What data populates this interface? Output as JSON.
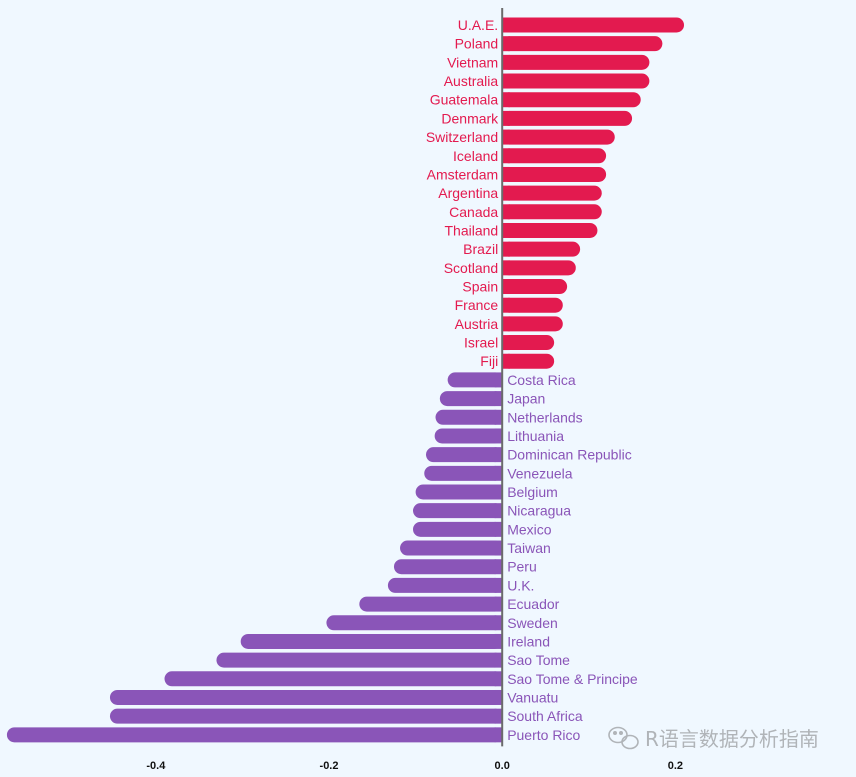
{
  "chart_data": {
    "type": "bar",
    "orientation": "horizontal",
    "title": "",
    "xlabel": "",
    "ylabel": "",
    "xlim": [
      -0.58,
      0.24
    ],
    "xticks": [
      -0.4,
      -0.2,
      0.0,
      0.2
    ],
    "xtick_labels": [
      "-0.4",
      "-0.2",
      "0.0",
      "0.2"
    ],
    "positive_color": "#e31a4f",
    "negative_color": "#8a55b8",
    "axis_color": "#6b6b6b",
    "categories": [
      "U.A.E.",
      "Poland",
      "Vietnam",
      "Australia",
      "Guatemala",
      "Denmark",
      "Switzerland",
      "Iceland",
      "Amsterdam",
      "Argentina",
      "Canada",
      "Thailand",
      "Brazil",
      "Scotland",
      "Spain",
      "France",
      "Austria",
      "Israel",
      "Fiji",
      "Costa Rica",
      "Japan",
      "Netherlands",
      "Lithuania",
      "Dominican Republic",
      "Venezuela",
      "Belgium",
      "Nicaragua",
      "Mexico",
      "Taiwan",
      "Peru",
      "U.K.",
      "Ecuador",
      "Sweden",
      "Ireland",
      "Sao Tome",
      "Sao Tome & Principe",
      "Vanuatu",
      "South Africa",
      "Puerto Rico"
    ],
    "values": [
      0.21,
      0.185,
      0.17,
      0.17,
      0.16,
      0.15,
      0.13,
      0.12,
      0.12,
      0.115,
      0.115,
      0.11,
      0.09,
      0.085,
      0.075,
      0.07,
      0.07,
      0.06,
      0.06,
      -0.063,
      -0.072,
      -0.077,
      -0.078,
      -0.088,
      -0.09,
      -0.1,
      -0.103,
      -0.103,
      -0.118,
      -0.125,
      -0.132,
      -0.165,
      -0.203,
      -0.302,
      -0.33,
      -0.39,
      -0.453,
      -0.453,
      -0.572
    ]
  },
  "watermark": {
    "text": "R语言数据分析指南",
    "icon": "wechat-icon"
  }
}
